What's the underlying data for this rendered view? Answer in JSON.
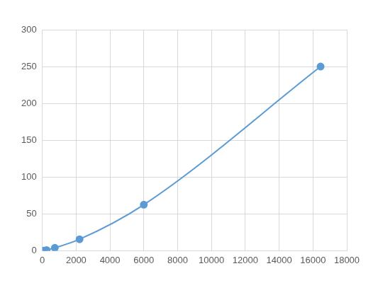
{
  "chart_data": {
    "type": "scatter",
    "x": [
      80,
      250,
      740,
      2200,
      6000,
      16450
    ],
    "values": [
      0.244,
      0.977,
      3.906,
      15.625,
      62.5,
      250
    ],
    "color": "#5b9bd5",
    "marker": "circle",
    "line_style": "smooth",
    "xlim": [
      0,
      18000
    ],
    "xticks": [
      0,
      2000,
      4000,
      6000,
      8000,
      10000,
      12000,
      14000,
      16000,
      18000
    ],
    "ylim": [
      0,
      300
    ],
    "yticks": [
      0,
      50,
      100,
      150,
      200,
      250,
      300
    ],
    "grid": true
  }
}
